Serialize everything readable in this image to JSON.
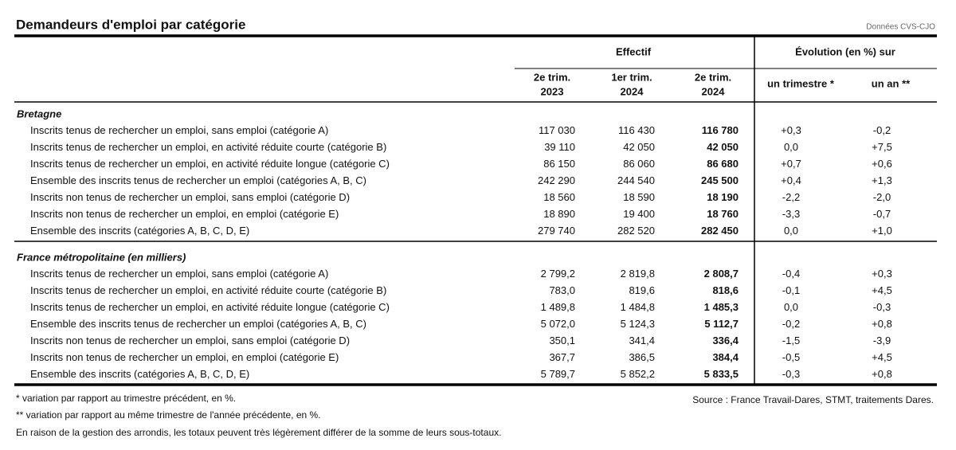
{
  "header": {
    "title": "Demandeurs d'emploi par catégorie",
    "note": "Données CVS-CJO"
  },
  "table": {
    "group_headers": [
      "Effectif",
      "Évolution (en %) sur"
    ],
    "columns": [
      [
        "2e trim.",
        "2023"
      ],
      [
        "1er trim.",
        "2024"
      ],
      [
        "2e trim.",
        "2024"
      ],
      [
        "un trimestre *"
      ],
      [
        "un an **"
      ]
    ],
    "sections": [
      {
        "title": "Bretagne",
        "rows": [
          {
            "label": "Inscrits tenus de rechercher un emploi, sans emploi (catégorie A)",
            "cells": [
              "117 030",
              "116 430",
              "116 780",
              "+0,3",
              "-0,2"
            ]
          },
          {
            "label": "Inscrits tenus de rechercher un emploi, en activité réduite courte (catégorie B)",
            "cells": [
              "39 110",
              "42 050",
              "42 050",
              "0,0",
              "+7,5"
            ]
          },
          {
            "label": "Inscrits tenus de rechercher un emploi, en activité réduite longue (catégorie C)",
            "cells": [
              "86 150",
              "86 060",
              "86 680",
              "+0,7",
              "+0,6"
            ]
          },
          {
            "label": "Ensemble des inscrits tenus de rechercher un emploi (catégories A, B, C)",
            "cells": [
              "242 290",
              "244 540",
              "245 500",
              "+0,4",
              "+1,3"
            ]
          },
          {
            "label": "Inscrits non tenus de rechercher un emploi, sans emploi (catégorie D)",
            "cells": [
              "18 560",
              "18 590",
              "18 190",
              "-2,2",
              "-2,0"
            ]
          },
          {
            "label": "Inscrits non tenus de rechercher un emploi, en emploi (catégorie E)",
            "cells": [
              "18 890",
              "19 400",
              "18 760",
              "-3,3",
              "-0,7"
            ]
          },
          {
            "label": "Ensemble des inscrits (catégories A, B, C, D, E)",
            "cells": [
              "279 740",
              "282 520",
              "282 450",
              "0,0",
              "+1,0"
            ]
          }
        ]
      },
      {
        "title": "France métropolitaine (en milliers)",
        "rows": [
          {
            "label": "Inscrits tenus de rechercher un emploi, sans emploi (catégorie A)",
            "cells": [
              "2 799,2",
              "2 819,8",
              "2 808,7",
              "-0,4",
              "+0,3"
            ]
          },
          {
            "label": "Inscrits tenus de rechercher un emploi, en activité réduite courte (catégorie B)",
            "cells": [
              "783,0",
              "819,6",
              "818,6",
              "-0,1",
              "+4,5"
            ]
          },
          {
            "label": "Inscrits tenus de rechercher un emploi, en activité réduite longue (catégorie C)",
            "cells": [
              "1 489,8",
              "1 484,8",
              "1 485,3",
              "0,0",
              "-0,3"
            ]
          },
          {
            "label": "Ensemble des inscrits tenus de rechercher un emploi (catégories A, B, C)",
            "cells": [
              "5 072,0",
              "5 124,3",
              "5 112,7",
              "-0,2",
              "+0,8"
            ]
          },
          {
            "label": "Inscrits non tenus de rechercher un emploi, sans emploi (catégorie D)",
            "cells": [
              "350,1",
              "341,4",
              "336,4",
              "-1,5",
              "-3,9"
            ]
          },
          {
            "label": "Inscrits non tenus de rechercher un emploi, en emploi (catégorie E)",
            "cells": [
              "367,7",
              "386,5",
              "384,4",
              "-0,5",
              "+4,5"
            ]
          },
          {
            "label": "Ensemble des inscrits (catégories A, B, C, D, E)",
            "cells": [
              "5 789,7",
              "5 852,2",
              "5 833,5",
              "-0,3",
              "+0,8"
            ]
          }
        ]
      }
    ]
  },
  "footer": {
    "notes": [
      "* variation par rapport au trimestre précédent, en %.",
      "** variation par rapport au même trimestre de l'année précédente, en %.",
      "En raison de la gestion des arrondis, les totaux peuvent très légèrement différer de la somme de leurs sous-totaux."
    ],
    "source": "Source : France Travail-Dares, STMT, traitements Dares."
  }
}
